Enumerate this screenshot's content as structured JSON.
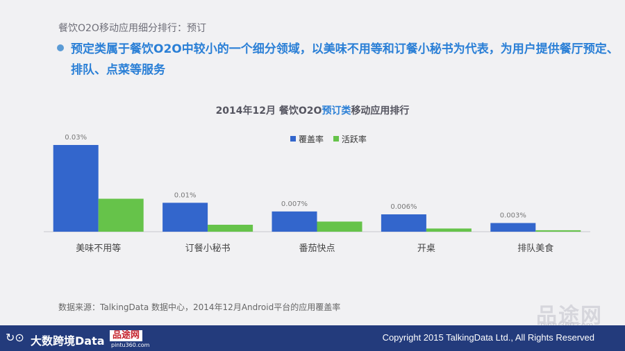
{
  "header": {
    "section_title": "餐饮O2O移动应用细分排行：预订",
    "bullet": "预定类属于餐饮O2O中较小的一个细分领域，以美味不用等和订餐小秘书为代表，为用户提供餐厅预定、排队、点菜等服务"
  },
  "chart_data": {
    "type": "bar",
    "title_prefix": "2014年12月 餐饮O2O",
    "title_highlight": "预订类",
    "title_suffix": "移动应用排行",
    "categories": [
      "美味不用等",
      "订餐小秘书",
      "番茄快点",
      "开桌",
      "排队美食"
    ],
    "series": [
      {
        "name": "覆盖率",
        "values": [
          0.03,
          0.01,
          0.007,
          0.006,
          0.003
        ],
        "labels": [
          "0.03%",
          "0.01%",
          "0.007%",
          "0.006%",
          "0.003%"
        ],
        "color": "#3366cc"
      },
      {
        "name": "活跃率",
        "values": [
          0.0114,
          0.0024,
          0.0035,
          0.0011,
          0.0005
        ],
        "color": "#66c34a"
      }
    ],
    "ylim": [
      0,
      0.03
    ],
    "legend_position": "top",
    "grid": false,
    "xlabel": "",
    "ylabel": ""
  },
  "source": "数据来源：TalkingData 数据中心，2014年12月Android平台的应用覆盖率",
  "footer": {
    "logo_text": "大数跨境Data",
    "watermark_box": "品途网",
    "watermark_url": "pintu360.com",
    "copyright": "Copyright 2015 TalkingData Ltd., All Rights Reserved"
  },
  "overlay_watermark": {
    "text": "品途网",
    "url": "pintu360.com"
  }
}
